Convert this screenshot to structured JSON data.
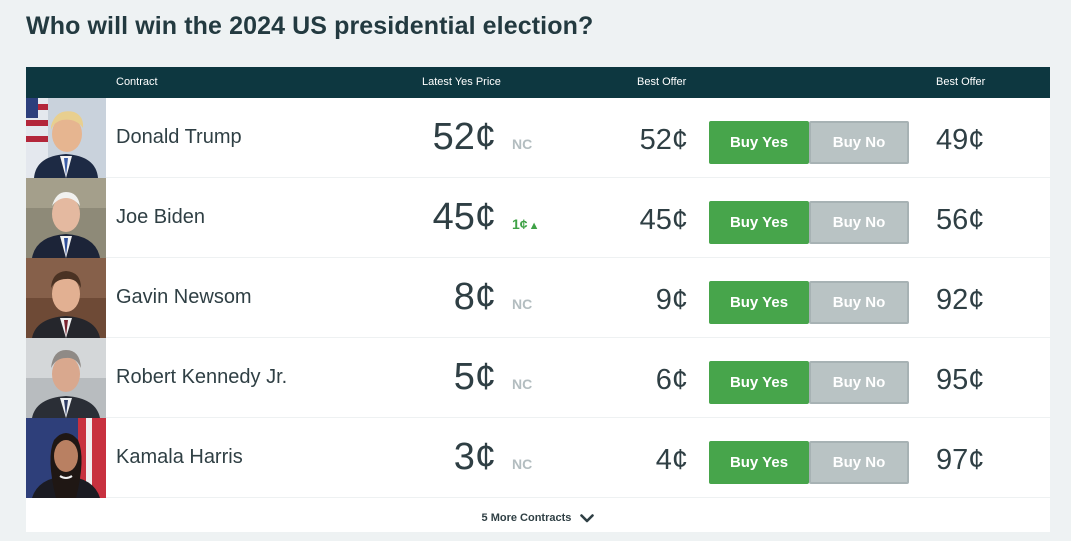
{
  "title": "Who will win the 2024 US presidential election?",
  "table": {
    "headers": {
      "contract": "Contract",
      "latest_yes_price": "Latest Yes Price",
      "best_offer_yes": "Best Offer",
      "best_offer_no": "Best Offer"
    },
    "buy_yes_label": "Buy Yes",
    "buy_no_label": "Buy No",
    "rows": [
      {
        "name": "Donald Trump",
        "latest_price": "52¢",
        "change": "NC",
        "change_dir": "none",
        "best_offer_yes": "52¢",
        "best_offer_no": "49¢",
        "avatar": "donald-trump-photo"
      },
      {
        "name": "Joe Biden",
        "latest_price": "45¢",
        "change": "1¢",
        "change_dir": "up",
        "best_offer_yes": "45¢",
        "best_offer_no": "56¢",
        "avatar": "joe-biden-photo"
      },
      {
        "name": "Gavin Newsom",
        "latest_price": "8¢",
        "change": "NC",
        "change_dir": "none",
        "best_offer_yes": "9¢",
        "best_offer_no": "92¢",
        "avatar": "gavin-newsom-photo"
      },
      {
        "name": "Robert Kennedy Jr.",
        "latest_price": "5¢",
        "change": "NC",
        "change_dir": "none",
        "best_offer_yes": "6¢",
        "best_offer_no": "95¢",
        "avatar": "robert-kennedy-jr-photo"
      },
      {
        "name": "Kamala Harris",
        "latest_price": "3¢",
        "change": "NC",
        "change_dir": "none",
        "best_offer_yes": "4¢",
        "best_offer_no": "97¢",
        "avatar": "kamala-harris-photo"
      }
    ]
  },
  "more_contracts": {
    "label": "5 More Contracts",
    "icon": "chevron-down-icon"
  },
  "colors": {
    "header_bg": "#0d3740",
    "buy_yes": "#47a54b",
    "buy_no": "#b9c3c4",
    "change_up": "#3ea146",
    "change_none": "#b3bdc0"
  }
}
